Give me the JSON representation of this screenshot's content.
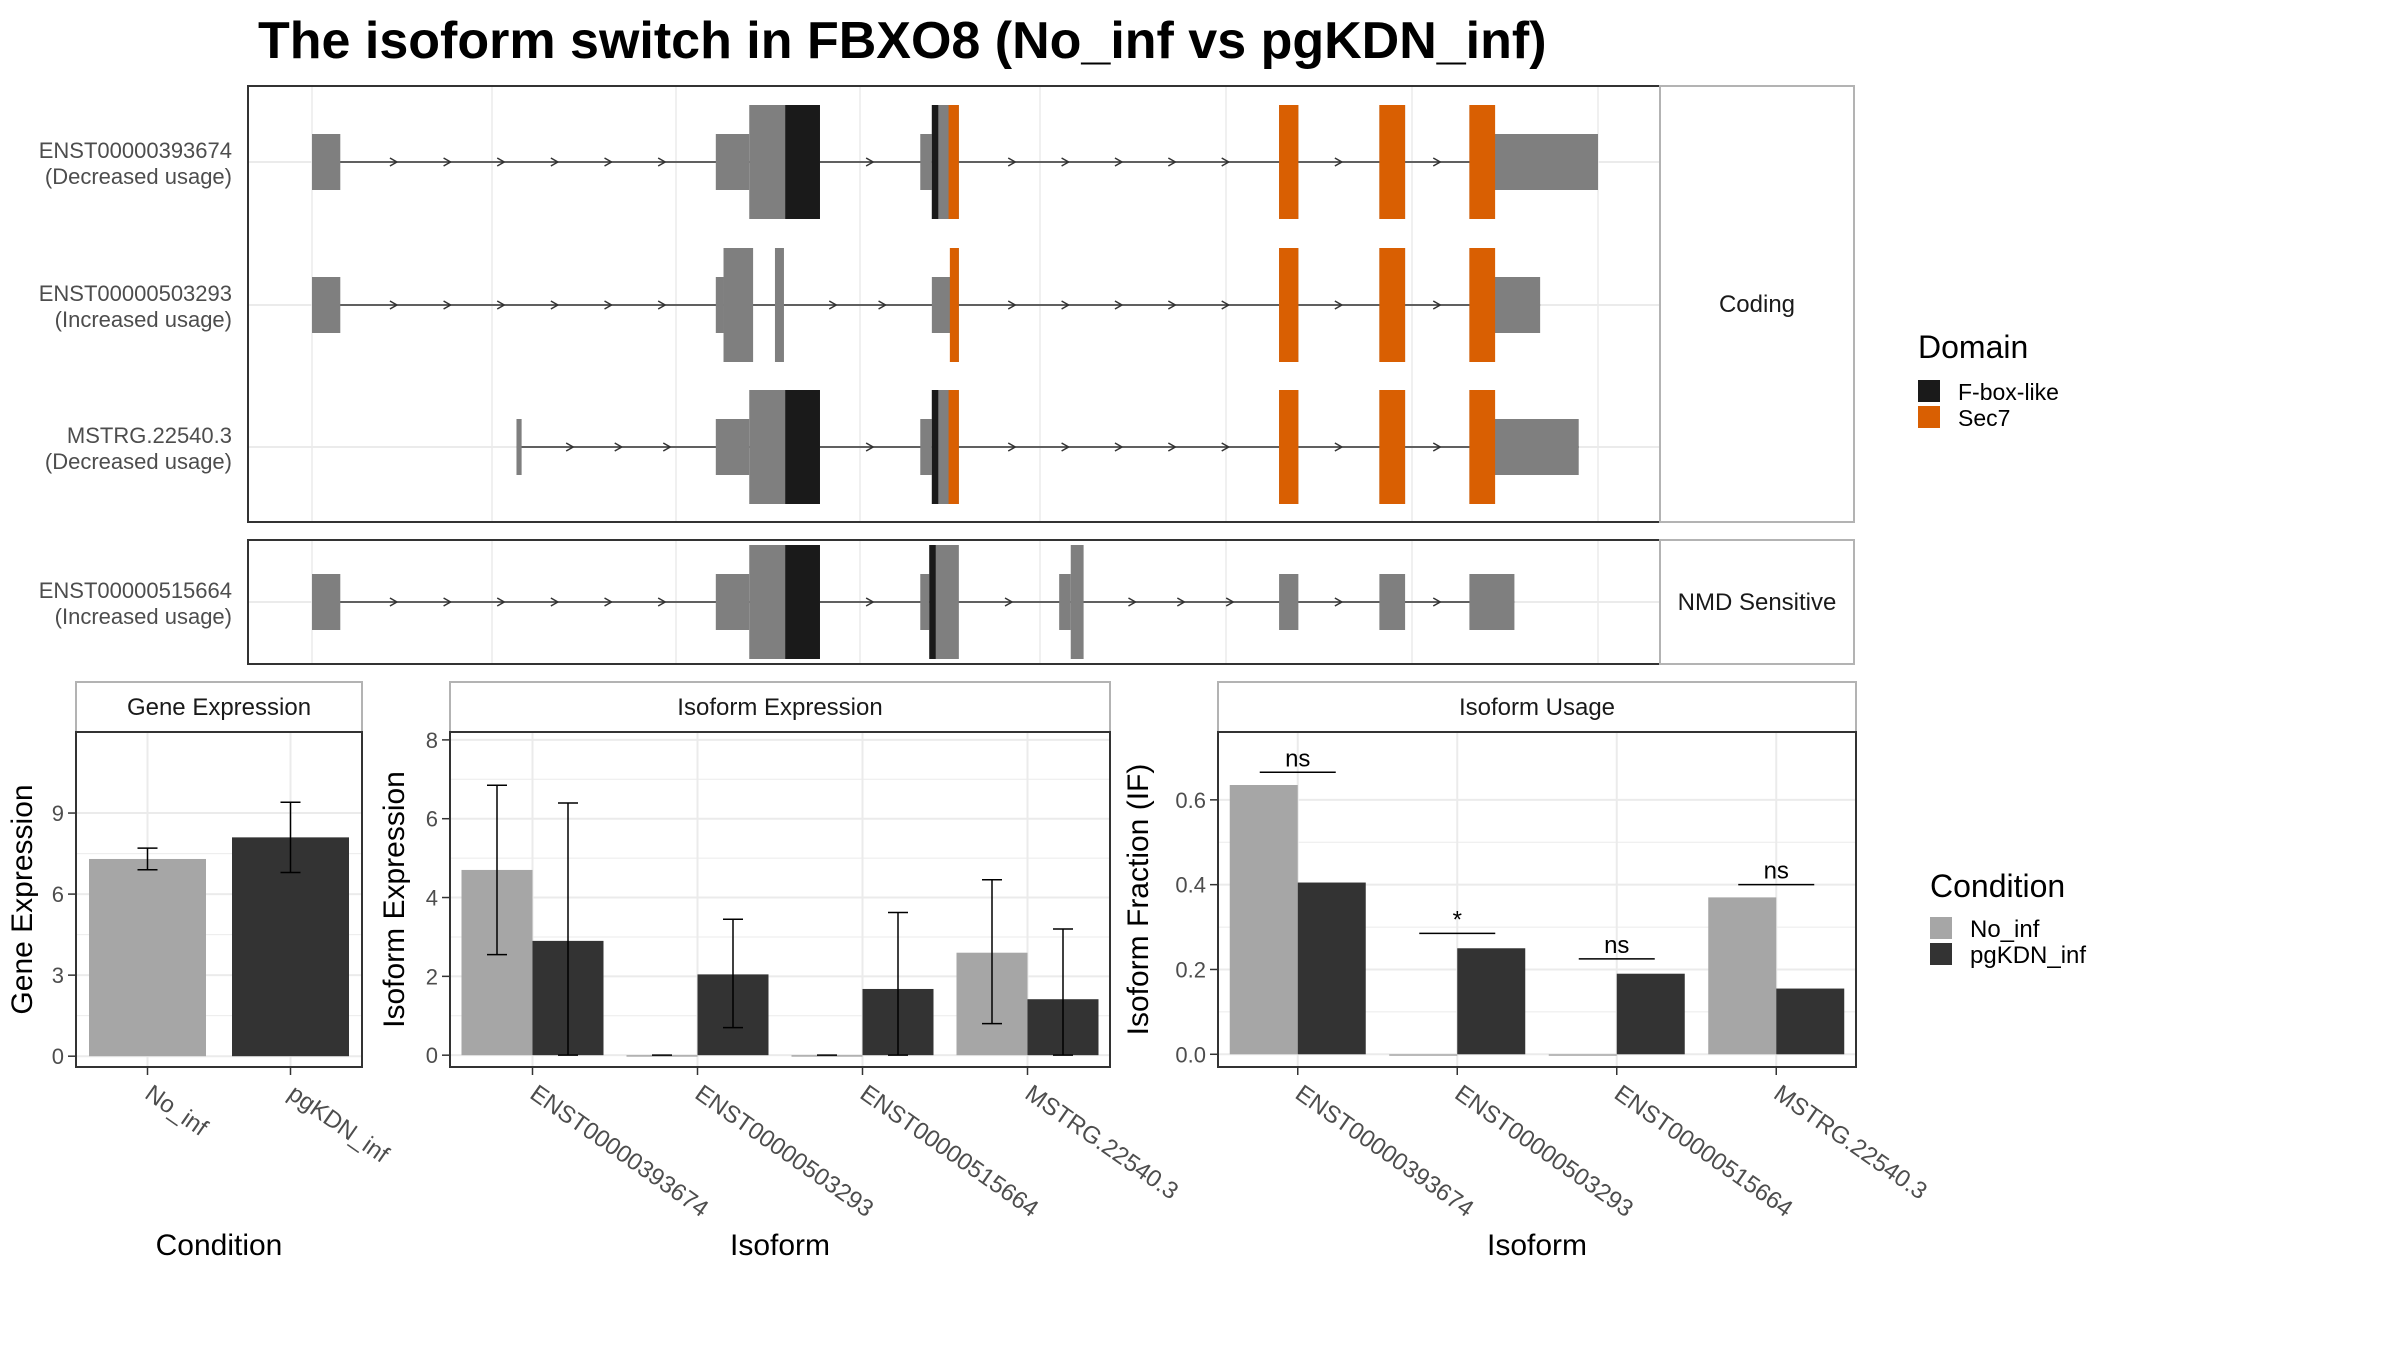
{
  "title": "The isoform switch in FBXO8 (No_inf vs pgKDN_inf)",
  "colors": {
    "no_inf": "#A6A6A6",
    "pgkdn_inf": "#333333",
    "exon": "#7F7F7F",
    "fbox": "#1A1A1A",
    "sec7": "#D95F02",
    "grid": "#EBEBEB",
    "panel_border": "#333333",
    "strip_border": "#B3B3B3"
  },
  "chart_data": [
    {
      "type": "gene-structure",
      "xlim": [
        0,
        1000
      ],
      "facets": [
        {
          "label": "Coding",
          "rows": [
            0,
            1,
            2
          ]
        },
        {
          "label": "NMD Sensitive",
          "rows": [
            3
          ]
        }
      ],
      "transcripts": [
        {
          "id": "ENST00000393674",
          "status": "(Decreased usage)",
          "utr": [
            [
              0,
              22
            ],
            [
              314,
              340
            ],
            [
              473,
              482
            ],
            [
              903,
              1000
            ]
          ],
          "cds": [
            [
              340,
              395
            ],
            [
              482,
              503
            ],
            [
              752,
              767
            ],
            [
              830,
              850
            ],
            [
              900,
              910
            ]
          ],
          "domains": [
            {
              "domain": "F-box-like",
              "start": 368,
              "end": 395
            },
            {
              "domain": "F-box-like",
              "start": 482,
              "end": 487
            },
            {
              "domain": "Sec7",
              "start": 495,
              "end": 503
            },
            {
              "domain": "Sec7",
              "start": 752,
              "end": 767
            },
            {
              "domain": "Sec7",
              "start": 830,
              "end": 850
            },
            {
              "domain": "Sec7",
              "start": 900,
              "end": 920
            }
          ]
        },
        {
          "id": "ENST00000503293",
          "status": "(Increased usage)",
          "utr": [
            [
              0,
              22
            ],
            [
              314,
              320
            ],
            [
              482,
              497
            ],
            [
              903,
              955
            ]
          ],
          "cds": [
            [
              320,
              343
            ],
            [
              360,
              367
            ],
            [
              497,
              503
            ],
            [
              752,
              767
            ],
            [
              830,
              850
            ],
            [
              900,
              910
            ]
          ],
          "domains": [
            {
              "domain": "Sec7",
              "start": 496,
              "end": 503
            },
            {
              "domain": "Sec7",
              "start": 752,
              "end": 767
            },
            {
              "domain": "Sec7",
              "start": 830,
              "end": 850
            },
            {
              "domain": "Sec7",
              "start": 900,
              "end": 920
            }
          ]
        },
        {
          "id": "MSTRG.22540.3",
          "status": "(Decreased usage)",
          "utr": [
            [
              159,
              163
            ],
            [
              314,
              340
            ],
            [
              473,
              482
            ],
            [
              903,
              985
            ]
          ],
          "cds": [
            [
              340,
              395
            ],
            [
              482,
              503
            ],
            [
              752,
              767
            ],
            [
              830,
              850
            ],
            [
              900,
              910
            ]
          ],
          "domains": [
            {
              "domain": "F-box-like",
              "start": 368,
              "end": 395
            },
            {
              "domain": "F-box-like",
              "start": 482,
              "end": 487
            },
            {
              "domain": "Sec7",
              "start": 495,
              "end": 503
            },
            {
              "domain": "Sec7",
              "start": 752,
              "end": 767
            },
            {
              "domain": "Sec7",
              "start": 830,
              "end": 850
            },
            {
              "domain": "Sec7",
              "start": 900,
              "end": 920
            }
          ]
        },
        {
          "id": "ENST00000515664",
          "status": "(Increased usage)",
          "utr": [
            [
              0,
              22
            ],
            [
              314,
              340
            ],
            [
              473,
              480
            ],
            [
              581,
              590
            ],
            [
              752,
              767
            ],
            [
              830,
              850
            ],
            [
              900,
              935
            ]
          ],
          "cds": [
            [
              340,
              395
            ],
            [
              480,
              503
            ],
            [
              590,
              600
            ]
          ],
          "domains": [
            {
              "domain": "F-box-like",
              "start": 368,
              "end": 395
            },
            {
              "domain": "F-box-like",
              "start": 480,
              "end": 485
            }
          ]
        }
      ],
      "legend": {
        "title": "Domain",
        "entries": [
          "F-box-like",
          "Sec7"
        ]
      }
    },
    {
      "type": "bar",
      "title": "Gene Expression",
      "xlabel": "Condition",
      "ylabel": "Gene Expression",
      "categories": [
        "No_inf",
        "pgKDN_inf"
      ],
      "values": [
        7.3,
        8.1
      ],
      "error_low": [
        6.9,
        6.8
      ],
      "error_high": [
        7.7,
        9.4
      ],
      "ylim": [
        -0.4,
        12
      ],
      "yticks": [
        0,
        3,
        6,
        9
      ]
    },
    {
      "type": "bar",
      "title": "Isoform Expression",
      "xlabel": "Isoform",
      "ylabel": "Isoform Expression",
      "categories": [
        "ENST00000393674",
        "ENST00000503293",
        "ENST00000515664",
        "MSTRG.22540.3"
      ],
      "series": [
        {
          "name": "No_inf",
          "values": [
            4.7,
            0,
            0,
            2.6
          ],
          "error_low": [
            2.55,
            0,
            0,
            0.8
          ],
          "error_high": [
            6.85,
            0,
            0,
            4.45
          ]
        },
        {
          "name": "pgKDN_inf",
          "values": [
            2.9,
            2.05,
            1.68,
            1.42
          ],
          "error_low": [
            0,
            0.7,
            0,
            0
          ],
          "error_high": [
            6.4,
            3.45,
            3.62,
            3.2
          ]
        }
      ],
      "ylim": [
        -0.3,
        8.2
      ],
      "yticks": [
        0,
        2,
        4,
        6,
        8
      ]
    },
    {
      "type": "bar",
      "title": "Isoform Usage",
      "xlabel": "Isoform",
      "ylabel": "Isoform Fraction (IF)",
      "categories": [
        "ENST00000393674",
        "ENST00000503293",
        "ENST00000515664",
        "MSTRG.22540.3"
      ],
      "series": [
        {
          "name": "No_inf",
          "values": [
            0.635,
            0,
            0,
            0.37
          ]
        },
        {
          "name": "pgKDN_inf",
          "values": [
            0.405,
            0.25,
            0.19,
            0.155
          ]
        }
      ],
      "significance": [
        {
          "label": "ns",
          "y": 0.665
        },
        {
          "label": "*",
          "y": 0.285
        },
        {
          "label": "ns",
          "y": 0.225
        },
        {
          "label": "ns",
          "y": 0.4
        }
      ],
      "ylim": [
        -0.03,
        0.76
      ],
      "yticks": [
        0.0,
        0.2,
        0.4,
        0.6
      ]
    }
  ],
  "condition_legend": {
    "title": "Condition",
    "entries": [
      "No_inf",
      "pgKDN_inf"
    ]
  }
}
